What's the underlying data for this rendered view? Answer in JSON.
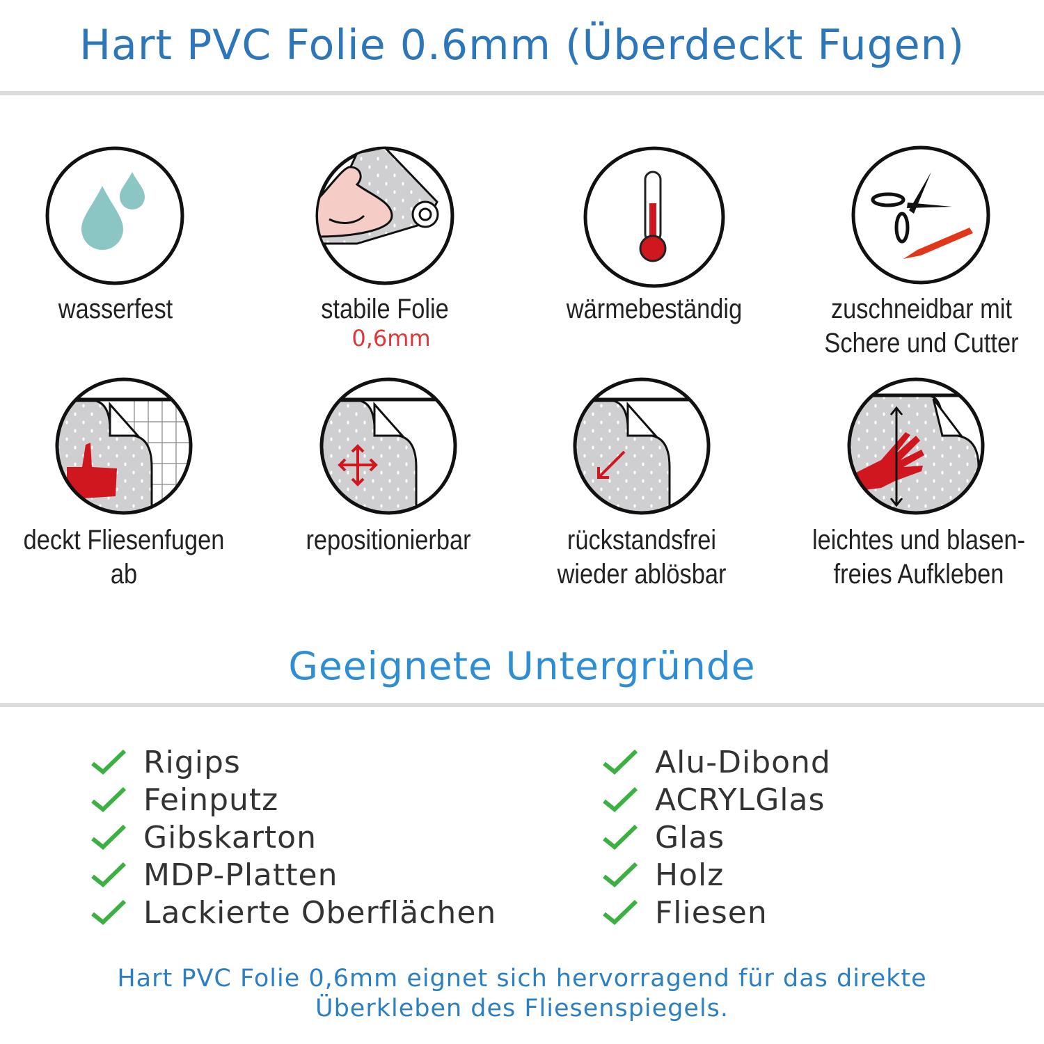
{
  "header": {
    "title": "Hart PVC Folie 0.6mm (Überdeckt Fugen)"
  },
  "features": [
    {
      "icon": "water-drops-icon",
      "label": "wasserfest"
    },
    {
      "icon": "strong-arm-icon",
      "label": "stabile Folie",
      "sub": "0,6mm"
    },
    {
      "icon": "thermometer-icon",
      "label": "wärmebeständig"
    },
    {
      "icon": "scissors-cutter-icon",
      "label_line1": "zuschneidbar mit",
      "label_line2": "Schere und Cutter"
    },
    {
      "icon": "thumbs-up-icon",
      "label": "deckt Fliesenfugen ab"
    },
    {
      "icon": "move-arrows-icon",
      "label": "repositionierbar"
    },
    {
      "icon": "peel-arrow-icon",
      "label_line1": "rückstandsfrei",
      "label_line2": "wieder ablösbar"
    },
    {
      "icon": "hand-smooth-icon",
      "label_line1": "leichtes und blasen-",
      "label_line2": "freies Aufkleben"
    }
  ],
  "surfaces": {
    "title": "Geeignete Untergründe",
    "left": [
      "Rigips",
      "Feinputz",
      "Gibskarton",
      "MDP-Platten",
      "Lackierte Oberflächen"
    ],
    "right": [
      "Alu-Dibond",
      "ACRYLGlas",
      "Glas",
      "Holz",
      "Fliesen"
    ]
  },
  "footer": {
    "line1": "Hart PVC Folie 0,6mm eignet sich hervorragend für das direkte",
    "line2": "Überkleben des Fliesenspiegels."
  },
  "colors": {
    "title": "#2d76b9",
    "heading": "#2f8dd4",
    "accent_red": "#d0161f",
    "check_green": "#3cb043",
    "water": "#8cc6c4"
  }
}
